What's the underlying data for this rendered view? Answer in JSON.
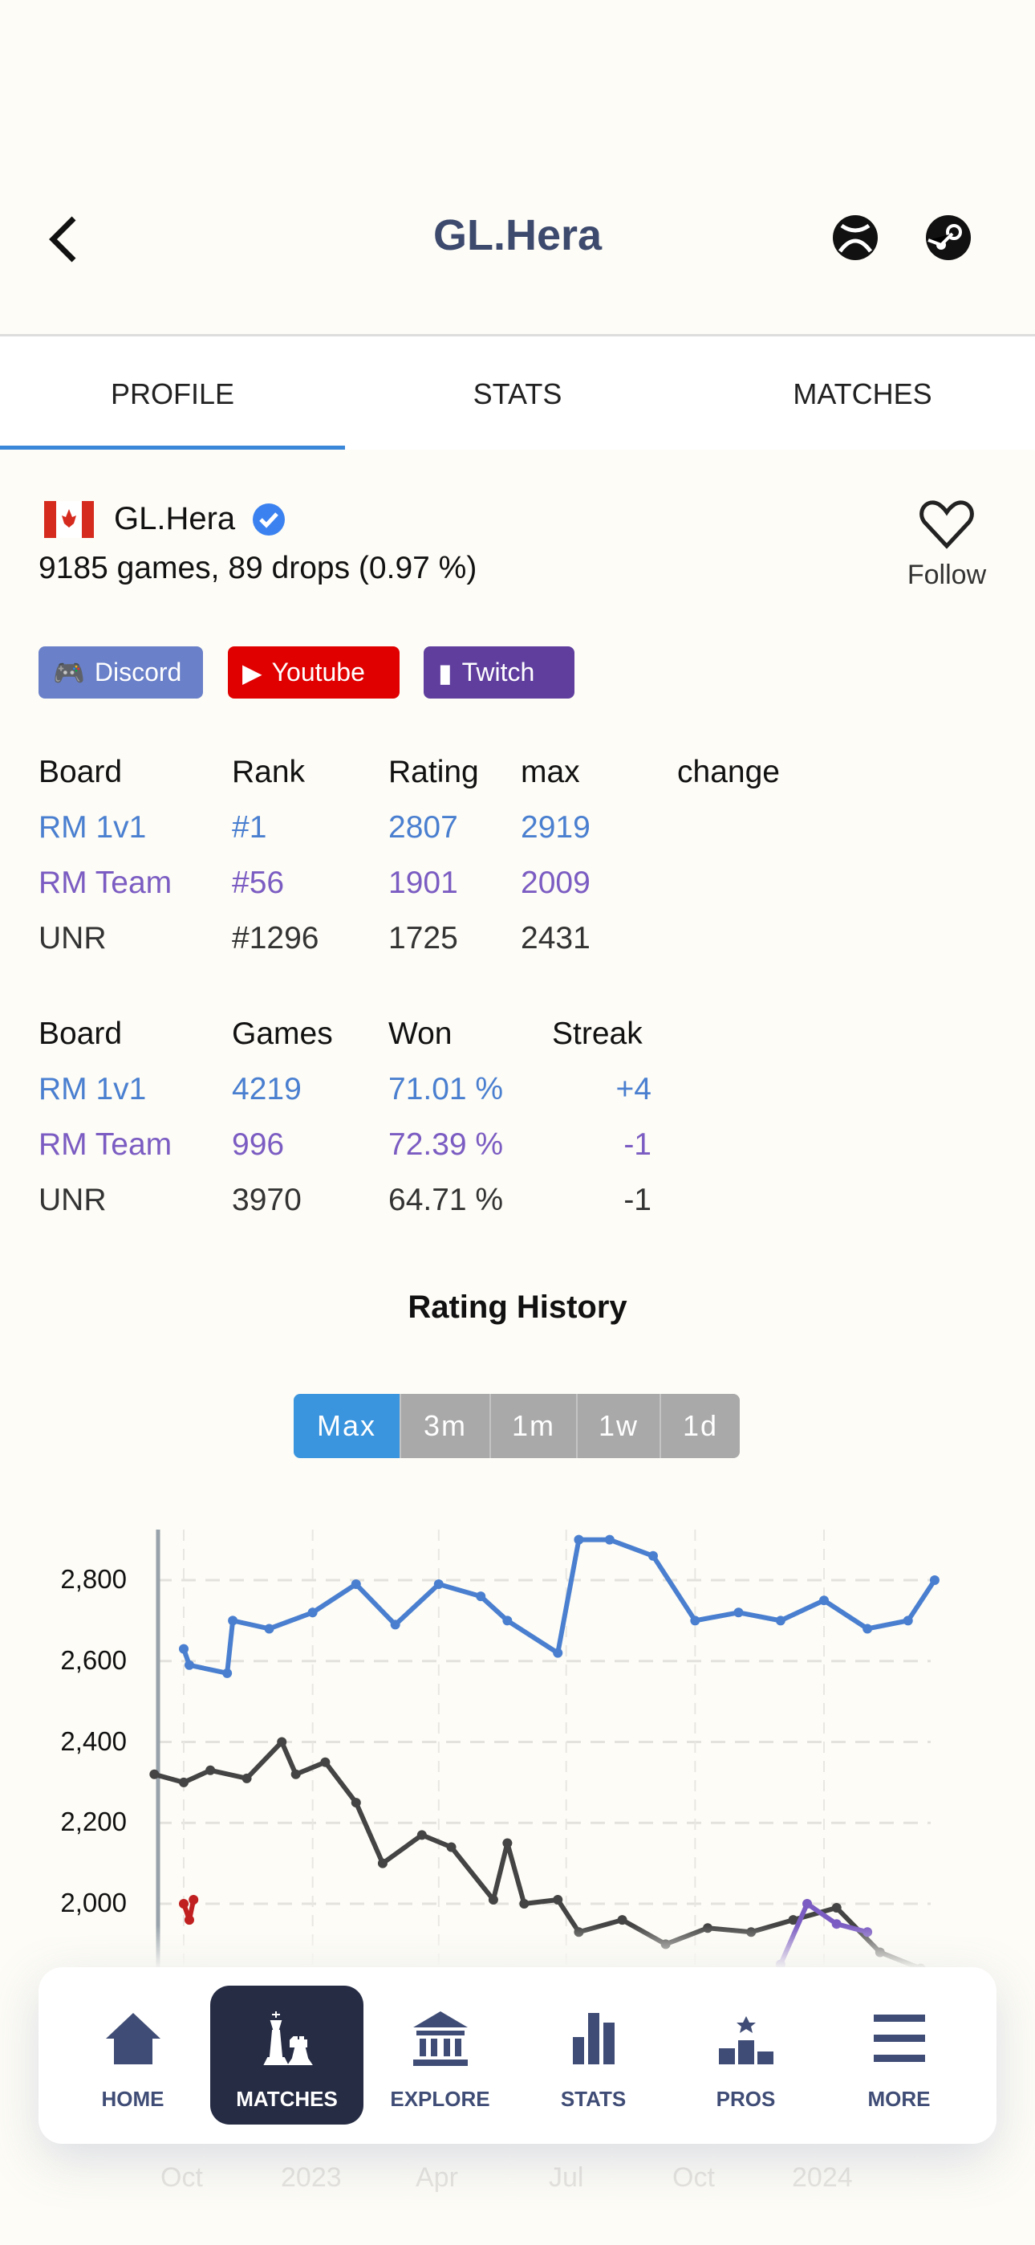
{
  "header": {
    "title": "GL.Hera",
    "back_icon": "chevron-left-icon",
    "icons": [
      "xbox-icon",
      "steam-icon"
    ]
  },
  "tabs": [
    {
      "label": "PROFILE",
      "active": true
    },
    {
      "label": "STATS"
    },
    {
      "label": "MATCHES"
    }
  ],
  "profile": {
    "flag": "canada-flag-icon",
    "name": "GL.Hera",
    "verified": true,
    "summary": "9185 games, 89 drops (0.97 %)",
    "follow_label": "Follow"
  },
  "socials": [
    {
      "label": "Discord",
      "color": "#6a80c8"
    },
    {
      "label": "Youtube",
      "color": "#e00000"
    },
    {
      "label": "Twitch",
      "color": "#5f3e9e"
    }
  ],
  "ratings": {
    "headers": [
      "Board",
      "Rank",
      "Rating",
      "max",
      "change"
    ],
    "rows": [
      {
        "board": "RM 1v1",
        "rank": "#1",
        "rating": "2807",
        "max": "2919",
        "color": "#4a7fd0"
      },
      {
        "board": "RM Team",
        "rank": "#56",
        "rating": "1901",
        "max": "2009",
        "color": "#7b5cc2"
      },
      {
        "board": "UNR",
        "rank": "#1296",
        "rating": "1725",
        "max": "2431",
        "color": "#333333"
      }
    ]
  },
  "games": {
    "headers": [
      "Board",
      "Games",
      "Won",
      "Streak"
    ],
    "rows": [
      {
        "board": "RM 1v1",
        "games": "4219",
        "won": "71.01 %",
        "streak": "+4",
        "color": "#4a7fd0"
      },
      {
        "board": "RM Team",
        "games": "996",
        "won": "72.39 %",
        "streak": "-1",
        "color": "#7b5cc2"
      },
      {
        "board": "UNR",
        "games": "3970",
        "won": "64.71 %",
        "streak": "-1",
        "color": "#333333"
      }
    ]
  },
  "rating_history": {
    "title": "Rating History",
    "ranges": [
      "Max",
      "3m",
      "1m",
      "1w",
      "1d"
    ],
    "selected": "Max"
  },
  "chart_data": {
    "type": "line",
    "grid": true,
    "y_ticks": [
      "2,800",
      "2,600",
      "2,400",
      "2,200",
      "2,000"
    ],
    "y_tick_values": [
      2800,
      2600,
      2400,
      2200,
      2000
    ],
    "x_ticks": [
      "Oct",
      "2023",
      "Apr",
      "Jul",
      "Oct",
      "2024"
    ],
    "x_tick_dates": [
      "2022-10-01",
      "2023-01-01",
      "2023-04-01",
      "2023-07-01",
      "2023-10-01",
      "2024-01-01"
    ],
    "series": [
      {
        "board": "RM 1v1",
        "color": "#4a7fd0",
        "points": [
          [
            "2022-10-01",
            2630
          ],
          [
            "2022-10-05",
            2590
          ],
          [
            "2022-11-01",
            2570
          ],
          [
            "2022-11-05",
            2700
          ],
          [
            "2022-12-01",
            2680
          ],
          [
            "2023-01-01",
            2720
          ],
          [
            "2023-02-01",
            2790
          ],
          [
            "2023-03-01",
            2690
          ],
          [
            "2023-04-01",
            2790
          ],
          [
            "2023-05-01",
            2760
          ],
          [
            "2023-05-20",
            2700
          ],
          [
            "2023-06-25",
            2620
          ],
          [
            "2023-07-10",
            2900
          ],
          [
            "2023-08-01",
            2900
          ],
          [
            "2023-09-01",
            2860
          ],
          [
            "2023-10-01",
            2700
          ],
          [
            "2023-11-01",
            2720
          ],
          [
            "2023-12-01",
            2700
          ],
          [
            "2024-01-01",
            2750
          ],
          [
            "2024-02-01",
            2680
          ],
          [
            "2024-03-01",
            2700
          ],
          [
            "2024-03-20",
            2800
          ]
        ]
      },
      {
        "board": "UNR",
        "color": "#444444",
        "points": [
          [
            "2022-09-10",
            2320
          ],
          [
            "2022-10-01",
            2300
          ],
          [
            "2022-10-20",
            2330
          ],
          [
            "2022-11-15",
            2310
          ],
          [
            "2022-12-10",
            2400
          ],
          [
            "2022-12-20",
            2320
          ],
          [
            "2023-01-10",
            2350
          ],
          [
            "2023-02-01",
            2250
          ],
          [
            "2023-02-20",
            2100
          ],
          [
            "2023-03-20",
            2170
          ],
          [
            "2023-04-10",
            2140
          ],
          [
            "2023-05-10",
            2010
          ],
          [
            "2023-05-20",
            2150
          ],
          [
            "2023-06-01",
            2000
          ],
          [
            "2023-06-25",
            2010
          ],
          [
            "2023-07-10",
            1930
          ],
          [
            "2023-08-10",
            1960
          ],
          [
            "2023-09-10",
            1900
          ],
          [
            "2023-10-10",
            1940
          ],
          [
            "2023-11-10",
            1930
          ],
          [
            "2023-12-10",
            1960
          ],
          [
            "2024-01-10",
            1990
          ],
          [
            "2024-02-10",
            1880
          ],
          [
            "2024-03-10",
            1840
          ]
        ]
      },
      {
        "board": "RM Team",
        "color": "#7b5cc2",
        "points": [
          [
            "2023-12-01",
            1850
          ],
          [
            "2023-12-20",
            2000
          ],
          [
            "2024-01-10",
            1950
          ],
          [
            "2024-02-01",
            1930
          ]
        ]
      },
      {
        "board": "UNR-early",
        "color": "#c02020",
        "points": [
          [
            "2022-10-01",
            2000
          ],
          [
            "2022-10-05",
            1960
          ],
          [
            "2022-10-08",
            2010
          ]
        ]
      }
    ]
  },
  "nav": [
    {
      "label": "HOME",
      "icon": "home-icon"
    },
    {
      "label": "MATCHES",
      "icon": "chess-icon",
      "active": true
    },
    {
      "label": "EXPLORE",
      "icon": "bank-icon"
    },
    {
      "label": "STATS",
      "icon": "bar-chart-icon"
    },
    {
      "label": "PROS",
      "icon": "podium-icon"
    },
    {
      "label": "MORE",
      "icon": "menu-icon"
    }
  ]
}
